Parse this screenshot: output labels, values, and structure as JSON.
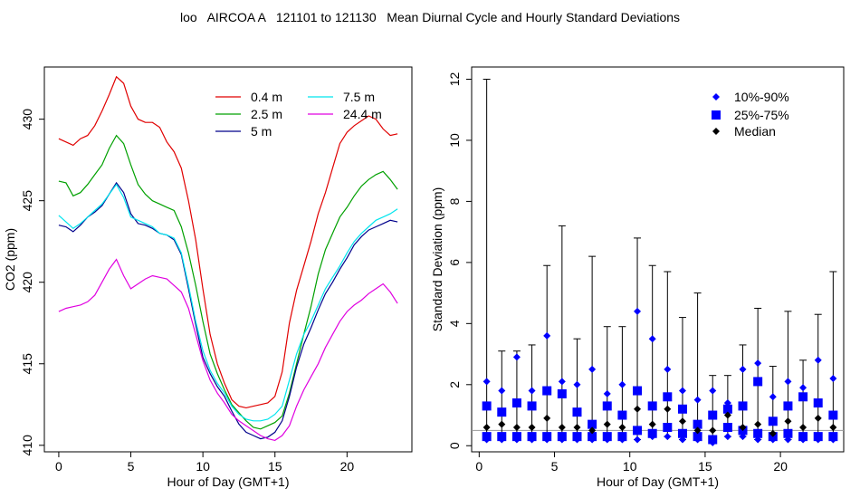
{
  "title": "loo   AIRCOA A   121101 to 121130   Mean Diurnal Cycle and Hourly Standard Deviations",
  "chart_data": [
    {
      "type": "line",
      "xlabel": "Hour of Day (GMT+1)",
      "ylabel": "CO2 (ppm)",
      "xlim": [
        -1,
        24.5
      ],
      "ylim": [
        409.6,
        433.2
      ],
      "xticks": [
        0,
        5,
        10,
        15,
        20
      ],
      "yticks": [
        410,
        415,
        420,
        425,
        430
      ],
      "legend_position": "top-right",
      "x": [
        0,
        0.5,
        1,
        1.5,
        2,
        2.5,
        3,
        3.5,
        4,
        4.5,
        5,
        5.5,
        6,
        6.5,
        7,
        7.5,
        8,
        8.5,
        9,
        9.5,
        10,
        10.5,
        11,
        11.5,
        12,
        12.5,
        13,
        13.5,
        14,
        14.5,
        15,
        15.5,
        16,
        16.5,
        17,
        17.5,
        18,
        18.5,
        19,
        19.5,
        20,
        20.5,
        21,
        21.5,
        22,
        22.5,
        23,
        23.5
      ],
      "series": [
        {
          "name": "0.4 m",
          "color": "#e00000",
          "values": [
            428.8,
            428.6,
            428.4,
            428.8,
            429.0,
            429.6,
            430.5,
            431.5,
            432.6,
            432.2,
            430.8,
            430.0,
            429.8,
            429.8,
            429.5,
            428.6,
            428.0,
            427.0,
            425.0,
            422.6,
            419.6,
            416.8,
            415.0,
            413.8,
            412.8,
            412.4,
            412.3,
            412.4,
            412.5,
            412.6,
            413.0,
            414.5,
            417.5,
            419.5,
            421.0,
            422.5,
            424.2,
            425.5,
            427.0,
            428.5,
            429.2,
            429.6,
            429.9,
            430.2,
            430.0,
            429.4,
            429.0,
            429.1
          ]
        },
        {
          "name": "2.5 m",
          "color": "#00a000",
          "values": [
            426.2,
            426.1,
            425.3,
            425.5,
            426.0,
            426.6,
            427.2,
            428.2,
            429.0,
            428.5,
            427.2,
            426.0,
            425.4,
            425.0,
            424.8,
            424.6,
            424.4,
            423.4,
            421.8,
            419.8,
            417.6,
            415.6,
            414.4,
            413.4,
            412.5,
            412.0,
            411.5,
            411.1,
            411.0,
            411.2,
            411.4,
            411.8,
            413.2,
            415.0,
            416.8,
            418.5,
            420.5,
            422.0,
            423.0,
            424.0,
            424.6,
            425.3,
            425.9,
            426.3,
            426.6,
            426.8,
            426.3,
            425.7
          ]
        },
        {
          "name": "5 m",
          "color": "#00008b",
          "values": [
            423.5,
            423.4,
            423.1,
            423.5,
            424.0,
            424.3,
            424.7,
            425.4,
            426.1,
            425.5,
            424.2,
            423.6,
            423.5,
            423.3,
            423.0,
            422.9,
            422.6,
            421.7,
            419.6,
            417.4,
            415.4,
            414.4,
            413.6,
            413.0,
            412.1,
            411.3,
            410.8,
            410.6,
            410.4,
            410.5,
            410.8,
            411.5,
            413.0,
            414.8,
            416.2,
            417.2,
            418.3,
            419.3,
            420.0,
            420.8,
            421.5,
            422.3,
            422.8,
            423.2,
            423.4,
            423.6,
            423.8,
            423.7
          ]
        },
        {
          "name": "7.5 m",
          "color": "#00e5ee",
          "values": [
            424.1,
            423.7,
            423.3,
            423.6,
            424.0,
            424.4,
            424.8,
            425.4,
            426.0,
            425.2,
            424.0,
            423.8,
            423.6,
            423.4,
            423.0,
            422.9,
            422.7,
            421.8,
            419.8,
            417.6,
            415.8,
            414.6,
            413.8,
            413.2,
            412.4,
            411.9,
            411.6,
            411.5,
            411.5,
            411.6,
            411.9,
            412.4,
            414.0,
            415.6,
            416.8,
            417.6,
            418.6,
            419.6,
            420.3,
            421.0,
            421.8,
            422.5,
            423.0,
            423.4,
            423.8,
            424.0,
            424.2,
            424.5
          ]
        },
        {
          "name": "24.4 m",
          "color": "#e000e0",
          "values": [
            418.2,
            418.4,
            418.5,
            418.6,
            418.8,
            419.2,
            420.0,
            420.8,
            421.4,
            420.4,
            419.6,
            419.9,
            420.2,
            420.4,
            420.3,
            420.2,
            419.8,
            419.4,
            418.4,
            416.8,
            415.2,
            414.0,
            413.2,
            412.6,
            411.9,
            411.5,
            411.2,
            410.9,
            410.6,
            410.4,
            410.3,
            410.6,
            411.2,
            412.4,
            413.4,
            414.2,
            415.0,
            416.0,
            416.8,
            417.6,
            418.2,
            418.6,
            418.9,
            419.3,
            419.6,
            419.9,
            419.4,
            418.7
          ]
        }
      ]
    },
    {
      "type": "scatter",
      "xlabel": "Hour of Day (GMT+1)",
      "ylabel": "Standard Deviation (ppm)",
      "xlim": [
        -0.5,
        24.2
      ],
      "ylim": [
        -0.2,
        12.4
      ],
      "xticks": [
        0,
        5,
        10,
        15,
        20
      ],
      "yticks": [
        0,
        2,
        4,
        6,
        8,
        10,
        12
      ],
      "reference_line": 0.5,
      "legend_position": "top-right",
      "legend": [
        {
          "label": "10%-90%",
          "marker": "diamond",
          "color": "#0000ff"
        },
        {
          "label": "25%-75%",
          "marker": "square",
          "color": "#0000ff"
        },
        {
          "label": "Median",
          "marker": "diamond",
          "color": "#000000"
        }
      ],
      "x": [
        0.5,
        1.5,
        2.5,
        3.5,
        4.5,
        5.5,
        6.5,
        7.5,
        8.5,
        9.5,
        10.5,
        11.5,
        12.5,
        13.5,
        14.5,
        15.5,
        16.5,
        17.5,
        18.5,
        19.5,
        20.5,
        21.5,
        22.5,
        23.5
      ],
      "series": [
        {
          "name": "10%-90%",
          "upper": [
            2.1,
            1.8,
            2.9,
            1.8,
            3.6,
            2.1,
            2.0,
            2.5,
            1.7,
            2.0,
            4.4,
            3.5,
            2.5,
            1.8,
            1.5,
            1.8,
            1.4,
            2.5,
            2.7,
            1.6,
            2.1,
            1.9,
            2.8,
            2.2
          ],
          "lower": [
            0.2,
            0.2,
            0.2,
            0.2,
            0.2,
            0.2,
            0.2,
            0.2,
            0.2,
            0.2,
            0.2,
            0.3,
            0.3,
            0.2,
            0.2,
            0.1,
            0.3,
            0.3,
            0.2,
            0.2,
            0.2,
            0.2,
            0.2,
            0.2
          ]
        },
        {
          "name": "25%-75%",
          "upper": [
            1.3,
            1.1,
            1.4,
            1.3,
            1.8,
            1.7,
            1.1,
            0.7,
            1.3,
            1.0,
            1.8,
            1.3,
            1.6,
            1.2,
            0.7,
            1.0,
            1.2,
            1.3,
            2.1,
            0.8,
            1.3,
            1.6,
            1.4,
            1.0
          ],
          "lower": [
            0.3,
            0.3,
            0.3,
            0.3,
            0.3,
            0.3,
            0.3,
            0.3,
            0.3,
            0.3,
            0.5,
            0.4,
            0.6,
            0.4,
            0.3,
            0.2,
            0.6,
            0.5,
            0.4,
            0.3,
            0.4,
            0.3,
            0.3,
            0.3
          ]
        },
        {
          "name": "Median",
          "values": [
            0.6,
            0.7,
            0.6,
            0.6,
            0.9,
            0.6,
            0.6,
            0.5,
            0.7,
            0.6,
            1.2,
            0.7,
            1.2,
            0.8,
            0.5,
            0.5,
            1.0,
            0.6,
            0.7,
            0.4,
            0.8,
            0.6,
            0.9,
            0.6
          ]
        },
        {
          "name": "whisker-max",
          "values": [
            12.0,
            3.1,
            3.1,
            3.3,
            5.9,
            7.2,
            3.5,
            6.2,
            3.9,
            3.9,
            6.8,
            5.9,
            5.7,
            4.2,
            5.0,
            2.3,
            2.3,
            3.3,
            4.5,
            2.6,
            4.4,
            2.8,
            4.3,
            5.7
          ]
        }
      ]
    }
  ]
}
